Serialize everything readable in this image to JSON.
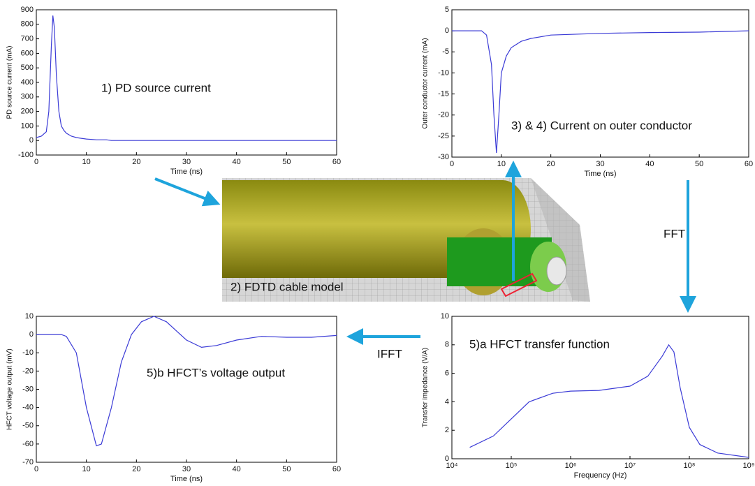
{
  "chart_data": [
    {
      "type": "line",
      "annotation": "1)  PD source current",
      "xlabel": "Time (ns)",
      "ylabel": "PD source current (mA)",
      "x": [
        0,
        1,
        2,
        2.5,
        3,
        3.3,
        3.6,
        4,
        4.5,
        5,
        5.5,
        6,
        7,
        8,
        9,
        10,
        12,
        14,
        15,
        20,
        30,
        40,
        50,
        60
      ],
      "values": [
        20,
        30,
        60,
        200,
        650,
        860,
        780,
        450,
        200,
        100,
        70,
        50,
        30,
        20,
        15,
        10,
        5,
        5,
        0,
        0,
        0,
        0,
        0,
        0
      ],
      "color": "#3b3bd6",
      "xlim": [
        0,
        60
      ],
      "xticks": [
        0,
        10,
        20,
        30,
        40,
        50,
        60
      ],
      "ylim": [
        -100,
        900
      ],
      "yticks": [
        -100,
        0,
        100,
        200,
        300,
        400,
        500,
        600,
        700,
        800,
        900
      ]
    },
    {
      "type": "line",
      "annotation": "3) & 4)  Current on outer conductor",
      "xlabel": "Time (ns)",
      "ylabel": "Outer conductor current (mA)",
      "x": [
        0,
        6,
        7,
        8,
        8.5,
        9,
        9.5,
        10,
        11,
        12,
        14,
        16,
        20,
        30,
        40,
        50,
        60
      ],
      "values": [
        0,
        0,
        -1,
        -8,
        -20,
        -29,
        -20,
        -10,
        -6,
        -4,
        -2.5,
        -1.8,
        -1,
        -0.6,
        -0.4,
        -0.3,
        0
      ],
      "color": "#3b3bd6",
      "xlim": [
        0,
        60
      ],
      "xticks": [
        0,
        10,
        20,
        30,
        40,
        50,
        60
      ],
      "ylim": [
        -30,
        5
      ],
      "yticks": [
        -30,
        -25,
        -20,
        -15,
        -10,
        -5,
        0,
        5
      ]
    },
    {
      "type": "line",
      "annotation": "5)b  HFCT’s voltage output",
      "xlabel": "Time (ns)",
      "ylabel": "HFCT voltage output (mV)",
      "x": [
        0,
        5,
        6,
        8,
        10,
        12,
        13,
        15,
        17,
        19,
        21,
        23.5,
        26,
        30,
        33,
        36,
        40,
        45,
        50,
        55,
        60
      ],
      "values": [
        0,
        0,
        -1,
        -10,
        -40,
        -61,
        -60,
        -40,
        -15,
        0,
        7,
        10,
        7,
        -3,
        -7,
        -6,
        -3,
        -1,
        -1.5,
        -1.5,
        -0.5
      ],
      "color": "#3b3bd6",
      "xlim": [
        0,
        60
      ],
      "xticks": [
        0,
        10,
        20,
        30,
        40,
        50,
        60
      ],
      "ylim": [
        -70,
        10
      ],
      "yticks": [
        -70,
        -60,
        -50,
        -40,
        -30,
        -20,
        -10,
        0,
        10
      ]
    },
    {
      "type": "line",
      "annotation": "5)a  HFCT transfer function",
      "xlabel": "Frequency (Hz)",
      "ylabel": "Transfer impedance (V/A)",
      "log_x": true,
      "x": [
        20000,
        50000,
        100000,
        200000,
        500000,
        1000000,
        3000000,
        10000000,
        20000000,
        35000000,
        45000000,
        55000000,
        70000000,
        100000000,
        150000000,
        300000000,
        1000000000
      ],
      "values": [
        0.8,
        1.6,
        2.8,
        4.0,
        4.6,
        4.75,
        4.8,
        5.1,
        5.8,
        7.2,
        8.0,
        7.5,
        5,
        2.2,
        1.0,
        0.4,
        0.1
      ],
      "color": "#3b3bd6",
      "xlim": [
        10000,
        1000000000
      ],
      "xticks": [
        {
          "value": 10000,
          "label": "10⁴"
        },
        {
          "value": 100000,
          "label": "10⁵"
        },
        {
          "value": 1000000,
          "label": "10⁶"
        },
        {
          "value": 10000000,
          "label": "10⁷"
        },
        {
          "value": 100000000,
          "label": "10⁸"
        },
        {
          "value": 1000000000,
          "label": "10⁹"
        }
      ],
      "ylim": [
        0,
        10
      ],
      "yticks": [
        0,
        2,
        4,
        6,
        8,
        10
      ]
    }
  ],
  "labels": {
    "model": "2)  FDTD cable model",
    "fft": "FFT",
    "ifft": "IFFT"
  }
}
